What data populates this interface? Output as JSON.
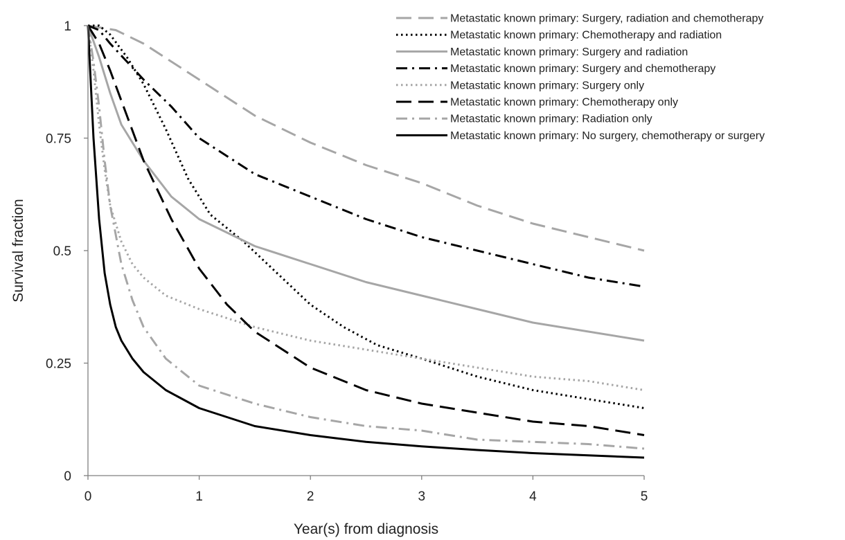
{
  "chart_data": {
    "type": "line",
    "title": "",
    "xlabel": "Year(s) from diagnosis",
    "ylabel": "Survival fraction",
    "xlim": [
      0,
      5
    ],
    "ylim": [
      0,
      1
    ],
    "x_ticks": [
      0,
      1,
      2,
      3,
      4,
      5
    ],
    "x_tick_labels": [
      "0",
      "1",
      "2",
      "3",
      "4",
      "5"
    ],
    "y_ticks": [
      0,
      0.25,
      0.5,
      0.75,
      1
    ],
    "y_tick_labels": [
      "0",
      "0.25",
      "0.5",
      "0.75",
      "1"
    ],
    "grid": false,
    "legend_position": "top-right",
    "series": [
      {
        "name": "Metastatic known primary: Surgery, radiation and chemotherapy",
        "color": "#a6a6a6",
        "dash": "long-dash",
        "x": [
          0,
          0.25,
          0.5,
          1,
          1.5,
          2,
          2.5,
          3,
          3.5,
          4,
          4.5,
          5
        ],
        "y": [
          1,
          0.99,
          0.96,
          0.88,
          0.8,
          0.74,
          0.69,
          0.65,
          0.6,
          0.56,
          0.53,
          0.5
        ]
      },
      {
        "name": "Metastatic known primary: Chemotherapy and radiation",
        "color": "#000000",
        "dash": "dot",
        "x": [
          0,
          0.1,
          0.2,
          0.35,
          0.5,
          0.7,
          0.9,
          1.1,
          1.4,
          1.7,
          2,
          2.3,
          2.6,
          3,
          3.5,
          4,
          4.5,
          5
        ],
        "y": [
          1,
          1,
          0.98,
          0.93,
          0.87,
          0.77,
          0.66,
          0.58,
          0.52,
          0.45,
          0.38,
          0.33,
          0.29,
          0.26,
          0.22,
          0.19,
          0.17,
          0.15
        ]
      },
      {
        "name": "Metastatic known primary: Surgery and radiation",
        "color": "#a6a6a6",
        "dash": "solid",
        "x": [
          0,
          0.1,
          0.2,
          0.3,
          0.5,
          0.75,
          1,
          1.5,
          2,
          2.5,
          3,
          3.5,
          4,
          4.5,
          5
        ],
        "y": [
          1,
          0.93,
          0.85,
          0.78,
          0.7,
          0.62,
          0.57,
          0.51,
          0.47,
          0.43,
          0.4,
          0.37,
          0.34,
          0.32,
          0.3
        ]
      },
      {
        "name": "Metastatic known primary: Surgery and chemotherapy",
        "color": "#000000",
        "dash": "dash-dot",
        "x": [
          0,
          0.1,
          0.2,
          0.35,
          0.5,
          0.75,
          1,
          1.5,
          2,
          2.5,
          3,
          3.5,
          4,
          4.5,
          5
        ],
        "y": [
          1,
          0.99,
          0.96,
          0.92,
          0.88,
          0.82,
          0.75,
          0.67,
          0.62,
          0.57,
          0.53,
          0.5,
          0.47,
          0.44,
          0.42
        ]
      },
      {
        "name": "Metastatic known primary: Surgery only",
        "color": "#a6a6a6",
        "dash": "dot",
        "x": [
          0,
          0.05,
          0.1,
          0.15,
          0.2,
          0.3,
          0.4,
          0.5,
          0.7,
          1,
          1.5,
          2,
          2.5,
          3,
          3.5,
          4,
          4.5,
          5
        ],
        "y": [
          1,
          0.9,
          0.78,
          0.68,
          0.6,
          0.52,
          0.47,
          0.44,
          0.4,
          0.37,
          0.33,
          0.3,
          0.28,
          0.26,
          0.24,
          0.22,
          0.21,
          0.19
        ]
      },
      {
        "name": "Metastatic known primary: Chemotherapy only",
        "color": "#000000",
        "dash": "long-dash",
        "x": [
          0,
          0.1,
          0.2,
          0.35,
          0.5,
          0.75,
          1,
          1.25,
          1.5,
          2,
          2.5,
          3,
          3.5,
          4,
          4.5,
          5
        ],
        "y": [
          1,
          0.96,
          0.9,
          0.8,
          0.7,
          0.57,
          0.46,
          0.38,
          0.32,
          0.24,
          0.19,
          0.16,
          0.14,
          0.12,
          0.11,
          0.09
        ]
      },
      {
        "name": "Metastatic known primary: Radiation only",
        "color": "#a6a6a6",
        "dash": "dash-dot",
        "x": [
          0,
          0.05,
          0.1,
          0.15,
          0.2,
          0.3,
          0.4,
          0.5,
          0.7,
          1,
          1.5,
          2,
          2.5,
          3,
          3.5,
          4,
          4.5,
          5
        ],
        "y": [
          1,
          0.92,
          0.82,
          0.7,
          0.6,
          0.47,
          0.39,
          0.33,
          0.26,
          0.2,
          0.16,
          0.13,
          0.11,
          0.1,
          0.08,
          0.075,
          0.07,
          0.06
        ]
      },
      {
        "name": "Metastatic known primary: No surgery, chemotherapy or surgery",
        "color": "#000000",
        "dash": "solid",
        "x": [
          0,
          0.02,
          0.05,
          0.1,
          0.15,
          0.2,
          0.25,
          0.3,
          0.4,
          0.5,
          0.7,
          1,
          1.5,
          2,
          2.5,
          3,
          3.5,
          4,
          4.5,
          5
        ],
        "y": [
          1,
          0.9,
          0.75,
          0.57,
          0.45,
          0.38,
          0.33,
          0.3,
          0.26,
          0.23,
          0.19,
          0.15,
          0.11,
          0.09,
          0.075,
          0.065,
          0.057,
          0.05,
          0.045,
          0.04
        ]
      }
    ]
  }
}
